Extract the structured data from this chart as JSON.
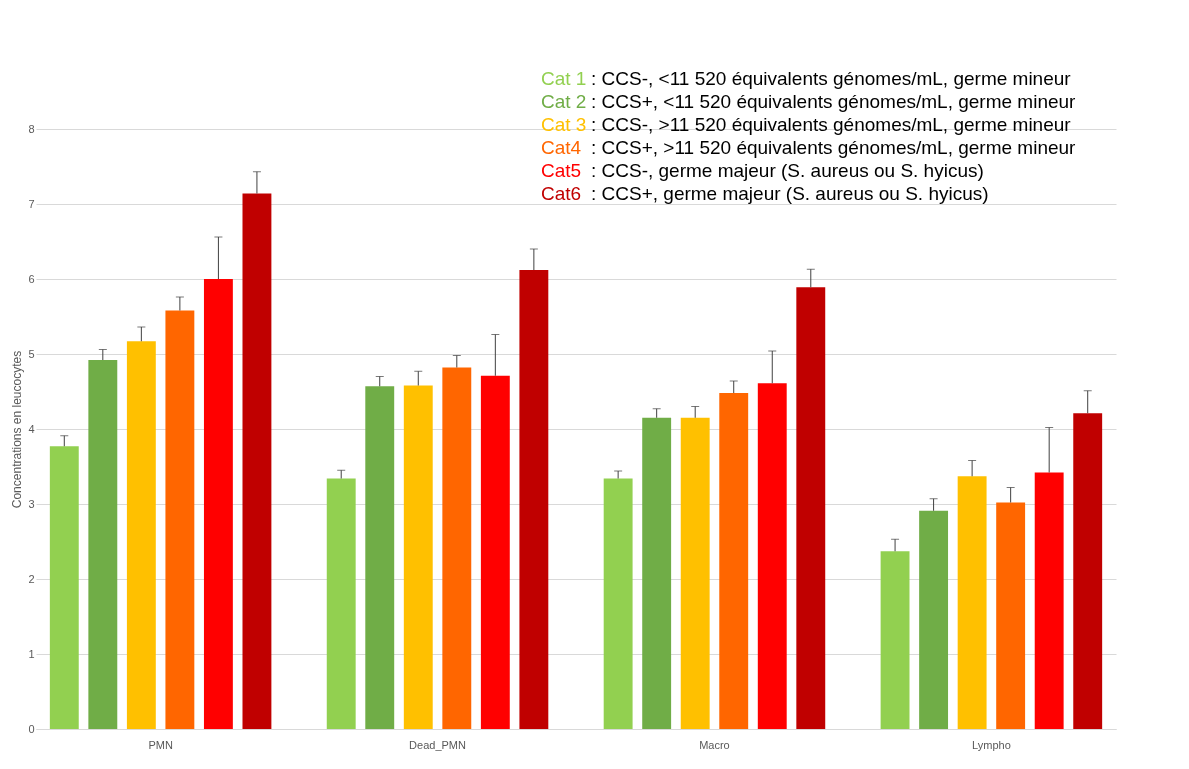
{
  "chart_data": {
    "type": "bar",
    "ylabel": "Concentrations en leucocytes",
    "categories": [
      "PMN",
      "Dead_PMN",
      "Macro",
      "Lympho"
    ],
    "series": [
      {
        "name": "Cat 1",
        "color": "#92d050",
        "values": [
          3.77,
          3.34,
          3.34,
          2.37
        ],
        "errors": [
          [
            3.77,
            3.91
          ],
          [
            3.34,
            3.45
          ],
          [
            3.34,
            3.44
          ],
          [
            2.37,
            2.53
          ]
        ]
      },
      {
        "name": "Cat 2",
        "color": "#70ad47",
        "values": [
          4.92,
          4.57,
          4.15,
          2.91
        ],
        "errors": [
          [
            4.92,
            5.06
          ],
          [
            4.57,
            4.7
          ],
          [
            4.15,
            4.27
          ],
          [
            2.91,
            3.07
          ]
        ]
      },
      {
        "name": "Cat 3",
        "color": "#ffc000",
        "values": [
          5.17,
          4.58,
          4.15,
          3.37
        ],
        "errors": [
          [
            5.17,
            5.36
          ],
          [
            4.58,
            4.77
          ],
          [
            4.15,
            4.3
          ],
          [
            3.37,
            3.58
          ]
        ]
      },
      {
        "name": "Cat4",
        "color": "#ff6600",
        "values": [
          5.58,
          4.82,
          4.48,
          3.02
        ],
        "errors": [
          [
            5.58,
            5.76
          ],
          [
            4.82,
            4.98
          ],
          [
            4.48,
            4.64
          ],
          [
            3.02,
            3.22
          ]
        ]
      },
      {
        "name": "Cat5",
        "color": "#ff0000",
        "values": [
          6.0,
          4.71,
          4.61,
          3.42
        ],
        "errors": [
          [
            6.0,
            6.56
          ],
          [
            4.71,
            5.26
          ],
          [
            4.61,
            5.04
          ],
          [
            3.42,
            4.02
          ]
        ]
      },
      {
        "name": "Cat6",
        "color": "#c00000",
        "values": [
          7.14,
          6.12,
          5.89,
          4.21
        ],
        "errors": [
          [
            7.14,
            7.43
          ],
          [
            6.12,
            6.4
          ],
          [
            5.89,
            6.13
          ],
          [
            4.21,
            4.51
          ]
        ]
      }
    ],
    "annotations": [
      " : CCS-, <11 520 équivalents génomes/mL, germe mineur",
      " : CCS+, <11 520 équivalents génomes/mL, germe mineur",
      " : CCS-, >11 520 équivalents génomes/mL, germe mineur",
      " : CCS+, >11 520 équivalents génomes/mL, germe mineur",
      " : CCS-, germe majeur (S. aureus ou S. hyicus)",
      " : CCS+, germe majeur (S. aureus ou S. hyicus)"
    ],
    "ylim": [
      0,
      8
    ],
    "yticks": [
      0,
      1,
      2,
      3,
      4,
      5,
      6,
      7,
      8
    ],
    "grid": "y",
    "legend": "top right"
  }
}
